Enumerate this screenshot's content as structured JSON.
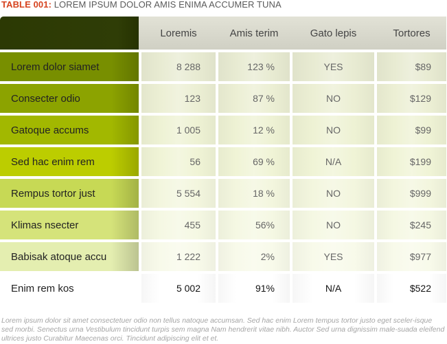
{
  "title": {
    "prefix": "TABLE 001:",
    "text": " LOREM IPSUM DOLOR AMIS ENIMA ACCUMER TUNA"
  },
  "table": {
    "headers": [
      "Loremis",
      "Amis terim",
      "Gato lepis",
      "Tortores"
    ],
    "rows": [
      {
        "label": "Lorem dolor siamet",
        "loremis": "8 288",
        "amis_terim": "123 %",
        "gato_lepis": "YES",
        "tortores": "$89"
      },
      {
        "label": "Consecter odio",
        "loremis": "123",
        "amis_terim": "87 %",
        "gato_lepis": "NO",
        "tortores": "$129"
      },
      {
        "label": "Gatoque accums",
        "loremis": "1 005",
        "amis_terim": "12 %",
        "gato_lepis": "NO",
        "tortores": "$99"
      },
      {
        "label": "Sed hac enim rem",
        "loremis": "56",
        "amis_terim": "69 %",
        "gato_lepis": "N/A",
        "tortores": "$199"
      },
      {
        "label": "Rempus tortor just",
        "loremis": "5 554",
        "amis_terim": "18 %",
        "gato_lepis": "NO",
        "tortores": "$999"
      },
      {
        "label": "Klimas nsecter",
        "loremis": "455",
        "amis_terim": "56%",
        "gato_lepis": "NO",
        "tortores": "$245"
      },
      {
        "label": "Babisak atoque accu",
        "loremis": "1 222",
        "amis_terim": "2%",
        "gato_lepis": "YES",
        "tortores": "$977"
      },
      {
        "label": "Enim rem kos",
        "loremis": "5 002",
        "amis_terim": "91%",
        "gato_lepis": "N/A",
        "tortores": "$522"
      }
    ]
  },
  "colors": {
    "label_bg": [
      "#788f00",
      "#8ca300",
      "#a2b800",
      "#bccd00",
      "#c7d955",
      "#d5e37a",
      "#e4eeb0",
      "#ffffff"
    ],
    "row_bg": [
      "#e8ebd2",
      "#ecefd4",
      "#eef2d4",
      "#f0f4d6",
      "#f3f6de",
      "#f5f8e3",
      "#f8faea",
      "#ffffff"
    ],
    "accent": "#d6431f"
  },
  "footnote": "Lorem ipsum dolor sit amet consectetuer odio non tellus natoque accumsan. Sed hac enim Lorem tempus tortor justo eget sceler-isque sed morbi. Senectus urna Vestibulum tincidunt turpis sem magna Nam hendrerit vitae nibh. Auctor Sed urna dignissim male-suada eleifend ultrices justo Curabitur Maecenas orci. Tincidunt adipiscing elit et et."
}
